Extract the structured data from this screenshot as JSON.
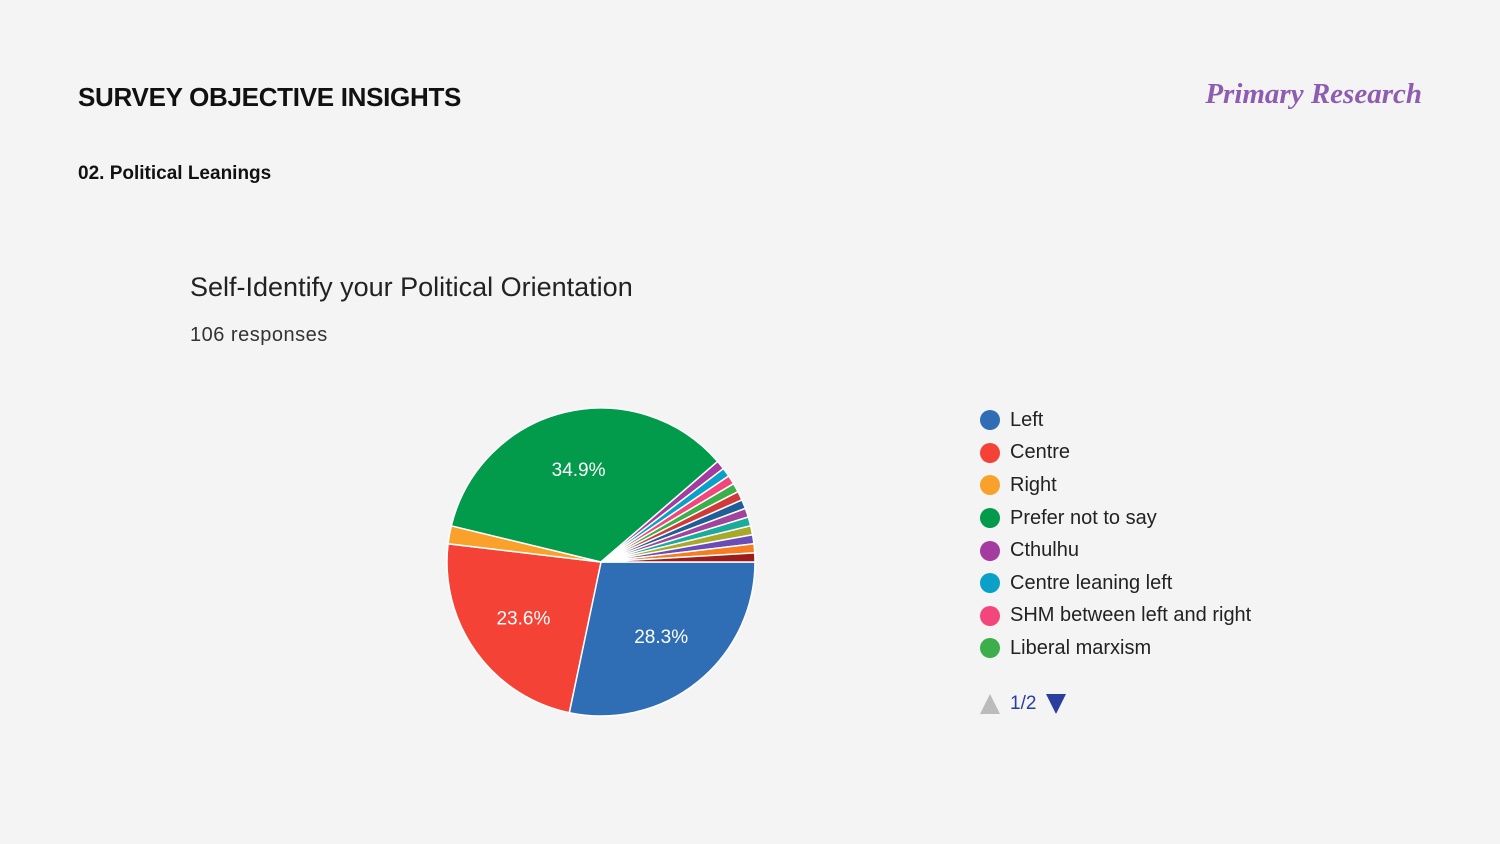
{
  "header": {
    "title": "SURVEY OBJECTIVE INSIGHTS",
    "brand": "Primary Research",
    "section": "02. Political Leanings"
  },
  "chart_data": {
    "type": "pie",
    "title": "Self-Identify your Political Orientation",
    "responses_label": "106 responses",
    "slices": [
      {
        "label": "Left",
        "value": 30,
        "pct_label": "28.3%",
        "color": "#2f6db4"
      },
      {
        "label": "Centre",
        "value": 25,
        "pct_label": "23.6%",
        "color": "#f44336"
      },
      {
        "label": "Right",
        "value": 2,
        "pct_label": "",
        "color": "#f9a12a"
      },
      {
        "label": "Prefer not to say",
        "value": 37,
        "pct_label": "34.9%",
        "color": "#029a4b"
      },
      {
        "label": "Cthulhu",
        "value": 1,
        "pct_label": "",
        "color": "#a33ba0"
      },
      {
        "label": "Centre leaning left",
        "value": 1,
        "pct_label": "",
        "color": "#0aa0c8"
      },
      {
        "label": "SHM between left and right",
        "value": 1,
        "pct_label": "",
        "color": "#f2467c"
      },
      {
        "label": "Liberal marxism",
        "value": 1,
        "pct_label": "",
        "color": "#3cae4a"
      },
      {
        "label": null,
        "value": 1,
        "pct_label": "",
        "color": "#d03a3a"
      },
      {
        "label": null,
        "value": 1,
        "pct_label": "",
        "color": "#1f5f99"
      },
      {
        "label": null,
        "value": 1,
        "pct_label": "",
        "color": "#a0449e"
      },
      {
        "label": null,
        "value": 1,
        "pct_label": "",
        "color": "#1aab9b"
      },
      {
        "label": null,
        "value": 1,
        "pct_label": "",
        "color": "#a8a82a"
      },
      {
        "label": null,
        "value": 1,
        "pct_label": "",
        "color": "#6a4cb8"
      },
      {
        "label": null,
        "value": 1,
        "pct_label": "",
        "color": "#f57c1f"
      },
      {
        "label": null,
        "value": 1,
        "pct_label": "",
        "color": "#9c1c1c"
      }
    ],
    "legend": {
      "placement": "right",
      "page": "1/2"
    }
  }
}
